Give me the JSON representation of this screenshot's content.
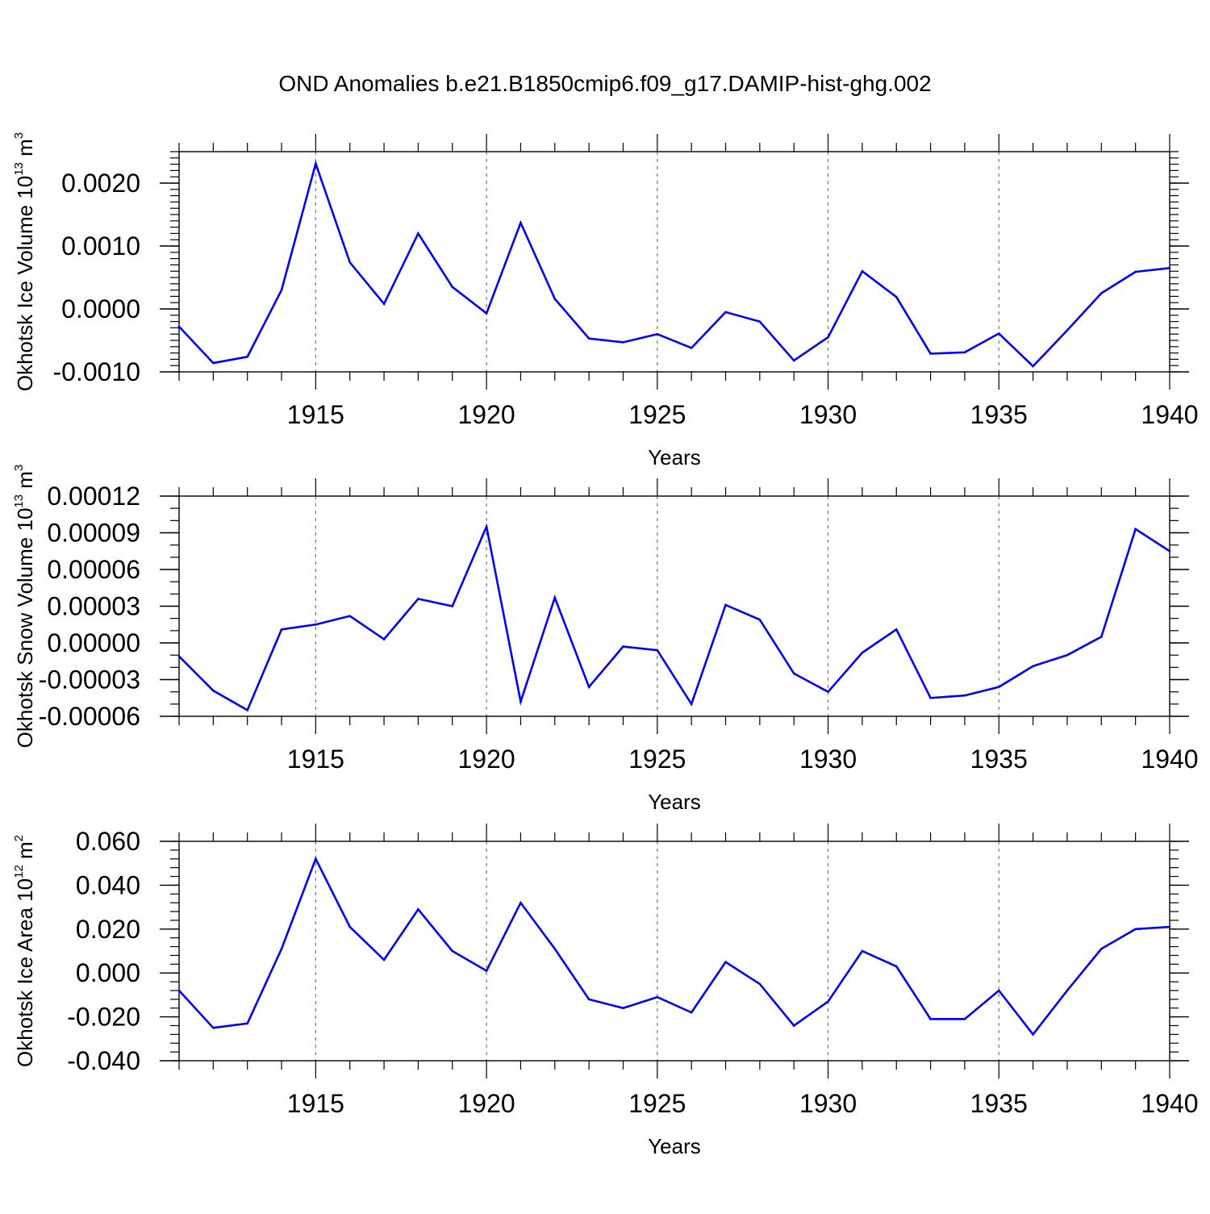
{
  "chart_data": {
    "title": "OND Anomalies b.e21.B1850cmip6.f09_g17.DAMIP-hist-ghg.002",
    "type": "line",
    "series_color": "#0000ff",
    "grid": "vertical dashed at major x ticks",
    "panels": [
      {
        "ylabel": {
          "main": "Okhotsk Ice Volume 10",
          "exp": "13",
          "unit": " m",
          "unit_exp": "3"
        },
        "xlabel": "Years",
        "xlim": [
          1911,
          1940
        ],
        "ylim": [
          -0.001,
          0.0025
        ],
        "y_ticks": [
          -0.001,
          0.0,
          0.001,
          0.002
        ],
        "y_tick_labels": [
          "-0.0010",
          "0.0000",
          "0.0010",
          "0.0020"
        ],
        "y_minor_step": 0.0001,
        "x_ticks": [
          1915,
          1920,
          1925,
          1930,
          1935,
          1940
        ],
        "x_tick_labels": [
          "1915",
          "1920",
          "1925",
          "1930",
          "1935",
          "1940"
        ],
        "x": [
          1911,
          1912,
          1913,
          1914,
          1915,
          1916,
          1917,
          1918,
          1919,
          1920,
          1921,
          1922,
          1923,
          1924,
          1925,
          1926,
          1927,
          1928,
          1929,
          1930,
          1931,
          1932,
          1933,
          1934,
          1935,
          1936,
          1937,
          1938,
          1939,
          1940
        ],
        "values": [
          -0.00028,
          -0.00086,
          -0.00076,
          0.0003,
          0.00231,
          0.00074,
          8e-05,
          0.0012,
          0.00035,
          -7e-05,
          0.00137,
          0.00016,
          -0.00047,
          -0.00053,
          -0.0004,
          -0.00062,
          -5e-05,
          -0.0002,
          -0.00082,
          -0.00045,
          0.0006,
          0.00019,
          -0.00071,
          -0.00069,
          -0.00039,
          -0.00091,
          -0.00034,
          0.00025,
          0.00059,
          0.00065
        ]
      },
      {
        "ylabel": {
          "main": "Okhotsk Snow Volume 10",
          "exp": "13",
          "unit": " m",
          "unit_exp": "3"
        },
        "xlabel": "Years",
        "xlim": [
          1911,
          1940
        ],
        "ylim": [
          -6e-05,
          0.00012
        ],
        "y_ticks": [
          -6e-05,
          -3e-05,
          0.0,
          3e-05,
          6e-05,
          9e-05,
          0.00012
        ],
        "y_tick_labels": [
          "-0.00006",
          "-0.00003",
          "0.00000",
          "0.00003",
          "0.00006",
          "0.00009",
          "0.00012"
        ],
        "y_minor_step": 1e-05,
        "x_ticks": [
          1915,
          1920,
          1925,
          1930,
          1935,
          1940
        ],
        "x_tick_labels": [
          "1915",
          "1920",
          "1925",
          "1930",
          "1935",
          "1940"
        ],
        "x": [
          1911,
          1912,
          1913,
          1914,
          1915,
          1916,
          1917,
          1918,
          1919,
          1920,
          1921,
          1922,
          1923,
          1924,
          1925,
          1926,
          1927,
          1928,
          1929,
          1930,
          1931,
          1932,
          1933,
          1934,
          1935,
          1936,
          1937,
          1938,
          1939,
          1940
        ],
        "values": [
          -1.1e-05,
          -3.9e-05,
          -5.5e-05,
          1.1e-05,
          1.5e-05,
          2.2e-05,
          3e-06,
          3.6e-05,
          3e-05,
          9.5e-05,
          -4.8e-05,
          3.7e-05,
          -3.6e-05,
          -3e-06,
          -6e-06,
          -5e-05,
          3.1e-05,
          1.9e-05,
          -2.5e-05,
          -4e-05,
          -8e-06,
          1.1e-05,
          -4.5e-05,
          -4.3e-05,
          -3.6e-05,
          -1.9e-05,
          -1e-05,
          5e-06,
          9.3e-05,
          7.5e-05
        ]
      },
      {
        "ylabel": {
          "main": "Okhotsk Ice Area 10",
          "exp": "12",
          "unit": " m",
          "unit_exp": "2"
        },
        "xlabel": "Years",
        "xlim": [
          1911,
          1940
        ],
        "ylim": [
          -0.04,
          0.06
        ],
        "y_ticks": [
          -0.04,
          -0.02,
          0.0,
          0.02,
          0.04,
          0.06
        ],
        "y_tick_labels": [
          "-0.040",
          "-0.020",
          "0.000",
          "0.020",
          "0.040",
          "0.060"
        ],
        "y_minor_step": 0.004,
        "x_ticks": [
          1915,
          1920,
          1925,
          1930,
          1935,
          1940
        ],
        "x_tick_labels": [
          "1915",
          "1920",
          "1925",
          "1930",
          "1935",
          "1940"
        ],
        "x": [
          1911,
          1912,
          1913,
          1914,
          1915,
          1916,
          1917,
          1918,
          1919,
          1920,
          1921,
          1922,
          1923,
          1924,
          1925,
          1926,
          1927,
          1928,
          1929,
          1930,
          1931,
          1932,
          1933,
          1934,
          1935,
          1936,
          1937,
          1938,
          1939,
          1940
        ],
        "values": [
          -0.008,
          -0.025,
          -0.023,
          0.011,
          0.052,
          0.021,
          0.006,
          0.029,
          0.01,
          0.001,
          0.032,
          0.011,
          -0.012,
          -0.016,
          -0.011,
          -0.018,
          0.005,
          -0.005,
          -0.024,
          -0.013,
          0.01,
          0.003,
          -0.021,
          -0.021,
          -0.008,
          -0.028,
          -0.008,
          0.011,
          0.02,
          0.021
        ]
      }
    ]
  }
}
